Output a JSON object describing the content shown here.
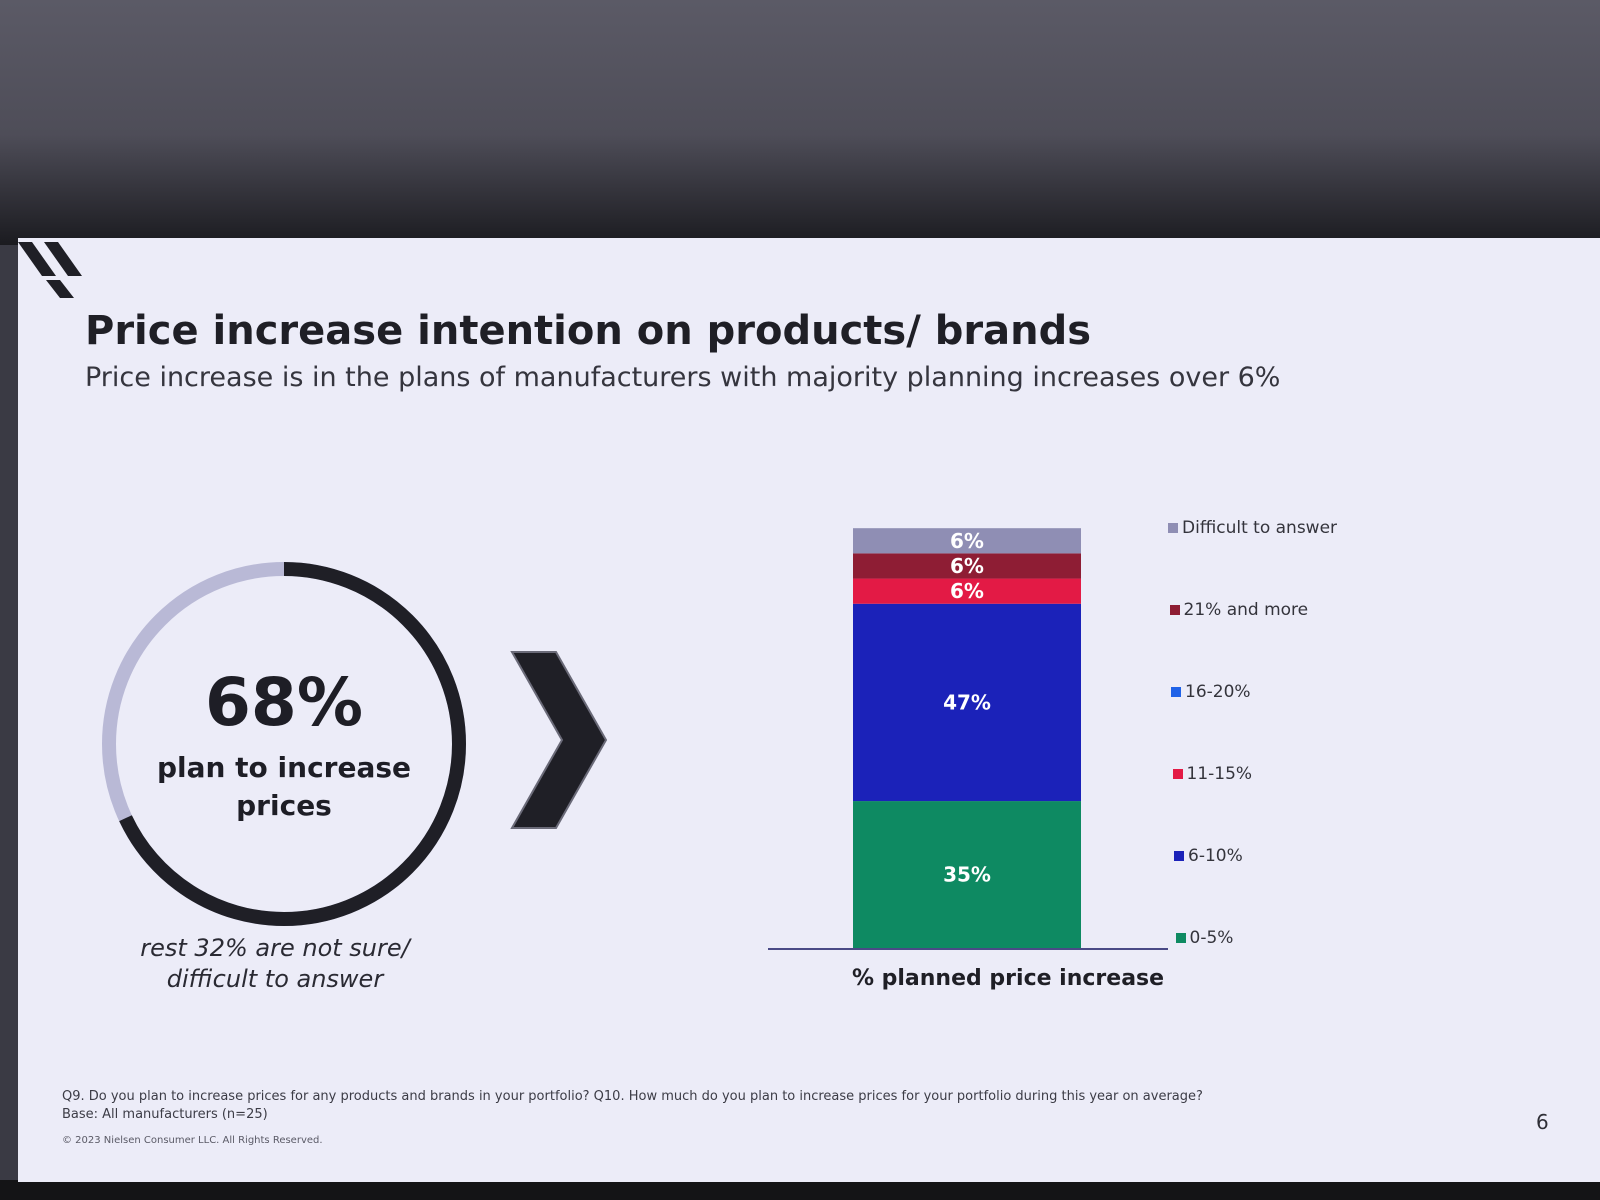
{
  "slide": {
    "title": "Price increase intention on products/ brands",
    "subtitle": "Price increase is in the plans of manufacturers with majority planning increases over 6%",
    "highlight": {
      "value": "68%",
      "value_fraction": 0.68,
      "caption": "plan to increase prices",
      "note": "rest 32% are not sure/ difficult to answer"
    },
    "footnote_line1": "Q9. Do you plan to increase prices for any products and brands in your portfolio?  Q10. How much do you plan to increase prices for your portfolio during this year on average?",
    "footnote_line2": "Base: All manufacturers (n=25)",
    "copyright": "© 2023 Nielsen Consumer LLC. All Rights Reserved.",
    "page_number": "6",
    "colors": {
      "donut_filled": "#1f1f26",
      "donut_rest": "#b9b9d6",
      "arrow": "#1f1f26"
    }
  },
  "chart_data": {
    "type": "bar",
    "stacked": true,
    "xlabel": "% planned price increase",
    "ylim": [
      0,
      106
    ],
    "series": [
      {
        "name": "0-5%",
        "values": [
          35
        ],
        "label": "35%",
        "color": "#0e8a62"
      },
      {
        "name": "6-10%",
        "values": [
          47
        ],
        "label": "47%",
        "color": "#1b22b9"
      },
      {
        "name": "11-15%",
        "values": [
          6
        ],
        "label": "6%",
        "color": "#e31a45"
      },
      {
        "name": "16-20%",
        "values": [
          0
        ],
        "label": "",
        "color": "#1f62e8"
      },
      {
        "name": "21% and more",
        "values": [
          6
        ],
        "label": "6%",
        "color": "#8e1d34"
      },
      {
        "name": "Difficult to answer",
        "values": [
          6
        ],
        "label": "6%",
        "color": "#8f8eb4"
      }
    ],
    "legend": {
      "position": "right",
      "order": [
        "Difficult to answer",
        "21% and more",
        "16-20%",
        "11-15%",
        "6-10%",
        "0-5%"
      ]
    }
  }
}
